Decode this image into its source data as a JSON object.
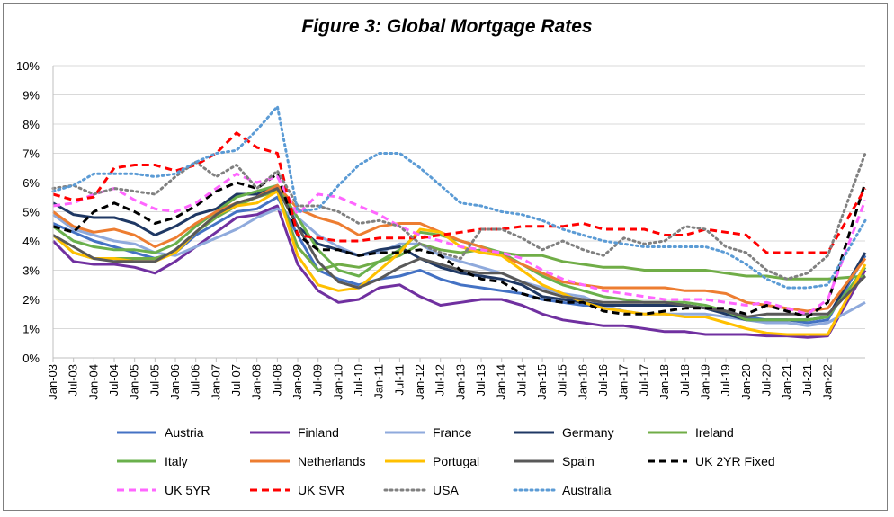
{
  "chart_data": {
    "type": "line",
    "title": "Figure 3: Global Mortgage Rates",
    "ylim": [
      0,
      10
    ],
    "yticks": [
      "0%",
      "1%",
      "2%",
      "3%",
      "4%",
      "5%",
      "6%",
      "7%",
      "8%",
      "9%",
      "10%"
    ],
    "x_labels": [
      "Jan-03",
      "Jul-03",
      "Jan-04",
      "Jul-04",
      "Jan-05",
      "Jul-05",
      "Jan-06",
      "Jul-06",
      "Jan-07",
      "Jul-07",
      "Jan-08",
      "Jul-08",
      "Jan-09",
      "Jul-09",
      "Jan-10",
      "Jul-10",
      "Jan-11",
      "Jul-11",
      "Jan-12",
      "Jul-12",
      "Jan-13",
      "Jul-13",
      "Jan-14",
      "Jul-14",
      "Jan-15",
      "Jul-15",
      "Jan-16",
      "Jul-16",
      "Jan-17",
      "Jul-17",
      "Jan-18",
      "Jul-18",
      "Jan-19",
      "Jul-19",
      "Jan-20",
      "Jul-20",
      "Jan-21",
      "Jul-21",
      "Jan-22"
    ],
    "grid": "horizontal",
    "legend_position": "bottom",
    "x_note": "values sampled every 6 months from Jan-03 to Jan-22, plus a final point at the end of the series (late 2022)",
    "series": [
      {
        "name": "Austria",
        "color": "#4472c4",
        "dash": "solid",
        "values": [
          4.6,
          4.3,
          4.0,
          3.8,
          3.6,
          3.4,
          3.6,
          4.2,
          4.6,
          5.0,
          5.1,
          5.5,
          4.2,
          3.0,
          2.7,
          2.5,
          2.7,
          2.8,
          3.0,
          2.7,
          2.5,
          2.4,
          2.3,
          2.2,
          2.0,
          1.9,
          1.8,
          1.8,
          1.8,
          1.8,
          1.8,
          1.8,
          1.7,
          1.6,
          1.4,
          1.3,
          1.3,
          1.2,
          1.3,
          3.5
        ]
      },
      {
        "name": "Finland",
        "color": "#7030a0",
        "dash": "solid",
        "values": [
          4.0,
          3.3,
          3.2,
          3.2,
          3.1,
          2.9,
          3.3,
          3.8,
          4.3,
          4.8,
          4.9,
          5.2,
          3.2,
          2.3,
          1.9,
          2.0,
          2.4,
          2.5,
          2.1,
          1.8,
          1.9,
          2.0,
          2.0,
          1.8,
          1.5,
          1.3,
          1.2,
          1.1,
          1.1,
          1.0,
          0.9,
          0.9,
          0.8,
          0.8,
          0.8,
          0.75,
          0.75,
          0.7,
          0.75,
          3.0
        ]
      },
      {
        "name": "France",
        "color": "#8faadc",
        "dash": "solid",
        "values": [
          4.9,
          4.4,
          4.2,
          4.0,
          3.9,
          3.6,
          3.5,
          3.8,
          4.1,
          4.4,
          4.8,
          5.1,
          4.8,
          4.2,
          3.8,
          3.5,
          3.6,
          3.9,
          3.9,
          3.5,
          3.3,
          3.1,
          2.9,
          2.6,
          2.4,
          2.2,
          2.1,
          1.8,
          1.6,
          1.5,
          1.5,
          1.5,
          1.5,
          1.4,
          1.3,
          1.2,
          1.2,
          1.1,
          1.2,
          1.9
        ]
      },
      {
        "name": "Germany",
        "color": "#1f3864",
        "dash": "solid",
        "values": [
          5.3,
          4.9,
          4.8,
          4.8,
          4.6,
          4.2,
          4.5,
          4.9,
          5.1,
          5.6,
          5.6,
          5.9,
          4.5,
          3.9,
          3.7,
          3.5,
          3.7,
          3.8,
          3.4,
          3.1,
          2.9,
          2.8,
          2.7,
          2.5,
          2.1,
          2.0,
          1.9,
          1.8,
          1.8,
          1.8,
          1.8,
          1.8,
          1.7,
          1.5,
          1.3,
          1.3,
          1.3,
          1.3,
          1.4,
          3.6
        ]
      },
      {
        "name": "Ireland",
        "color": "#70ad47",
        "dash": "solid",
        "values": [
          4.2,
          3.6,
          3.4,
          3.4,
          3.4,
          3.4,
          3.6,
          4.3,
          4.8,
          5.2,
          5.5,
          5.7,
          3.8,
          3.0,
          3.2,
          3.1,
          3.3,
          3.5,
          3.9,
          3.7,
          3.6,
          3.7,
          3.6,
          3.5,
          3.5,
          3.3,
          3.2,
          3.1,
          3.1,
          3.0,
          3.0,
          3.0,
          3.0,
          2.9,
          2.8,
          2.8,
          2.7,
          2.7,
          2.7,
          2.8
        ]
      },
      {
        "name": "Italy",
        "color": "#6ab04c",
        "dash": "solid",
        "values": [
          4.5,
          4.0,
          3.8,
          3.7,
          3.7,
          3.6,
          3.9,
          4.5,
          5.0,
          5.5,
          5.7,
          5.9,
          4.8,
          3.7,
          3.0,
          2.8,
          3.3,
          3.7,
          4.3,
          4.2,
          4.0,
          3.8,
          3.6,
          3.2,
          2.8,
          2.5,
          2.3,
          2.1,
          2.0,
          1.9,
          1.9,
          1.9,
          1.8,
          1.6,
          1.3,
          1.3,
          1.3,
          1.3,
          1.4,
          3.1
        ]
      },
      {
        "name": "Netherlands",
        "color": "#ed7d31",
        "dash": "solid",
        "values": [
          5.0,
          4.5,
          4.3,
          4.4,
          4.2,
          3.8,
          4.1,
          4.6,
          5.0,
          5.3,
          5.5,
          5.9,
          5.1,
          4.8,
          4.6,
          4.2,
          4.5,
          4.6,
          4.6,
          4.3,
          4.0,
          3.8,
          3.5,
          3.2,
          2.9,
          2.6,
          2.5,
          2.4,
          2.4,
          2.4,
          2.4,
          2.3,
          2.3,
          2.2,
          1.9,
          1.8,
          1.7,
          1.6,
          1.7,
          3.4
        ]
      },
      {
        "name": "Portugal",
        "color": "#ffc000",
        "dash": "solid",
        "values": [
          4.2,
          3.6,
          3.4,
          3.4,
          3.3,
          3.3,
          3.6,
          4.3,
          4.9,
          5.2,
          5.3,
          5.7,
          3.5,
          2.5,
          2.3,
          2.4,
          3.0,
          3.6,
          4.4,
          4.3,
          3.8,
          3.6,
          3.5,
          3.0,
          2.5,
          2.2,
          1.9,
          1.7,
          1.6,
          1.5,
          1.5,
          1.4,
          1.4,
          1.2,
          1.0,
          0.85,
          0.8,
          0.8,
          0.8,
          3.2
        ]
      },
      {
        "name": "Spain",
        "color": "#595959",
        "dash": "solid",
        "values": [
          4.2,
          3.8,
          3.4,
          3.3,
          3.3,
          3.3,
          3.7,
          4.3,
          4.9,
          5.3,
          5.5,
          5.8,
          4.5,
          3.3,
          2.6,
          2.4,
          2.7,
          3.1,
          3.4,
          3.2,
          3.0,
          2.9,
          2.9,
          2.6,
          2.3,
          2.1,
          2.0,
          1.9,
          1.9,
          1.9,
          1.9,
          1.8,
          1.7,
          1.6,
          1.4,
          1.5,
          1.5,
          1.5,
          1.5,
          2.8
        ]
      },
      {
        "name": "UK 2YR Fixed",
        "color": "#000000",
        "dash": "8,5",
        "values": [
          4.5,
          4.3,
          5.0,
          5.3,
          5.0,
          4.6,
          4.8,
          5.2,
          5.7,
          6.0,
          5.8,
          6.3,
          4.2,
          3.7,
          3.7,
          3.5,
          3.6,
          3.6,
          3.7,
          3.5,
          3.0,
          2.7,
          2.6,
          2.2,
          2.0,
          1.9,
          1.9,
          1.6,
          1.5,
          1.5,
          1.6,
          1.7,
          1.7,
          1.7,
          1.5,
          1.8,
          1.6,
          1.4,
          1.9,
          6.0
        ]
      },
      {
        "name": "UK 5YR",
        "color": "#ff66ff",
        "dash": "8,5",
        "values": [
          5.2,
          5.3,
          5.6,
          5.8,
          5.4,
          5.1,
          5.0,
          5.3,
          5.8,
          6.3,
          6.0,
          6.2,
          4.9,
          5.6,
          5.5,
          5.2,
          4.9,
          4.5,
          4.2,
          4.0,
          3.8,
          3.7,
          3.6,
          3.4,
          3.0,
          2.7,
          2.5,
          2.3,
          2.2,
          2.1,
          2.0,
          2.0,
          2.0,
          1.9,
          1.8,
          1.9,
          1.7,
          1.5,
          2.0,
          5.4
        ]
      },
      {
        "name": "UK SVR",
        "color": "#ff0000",
        "dash": "8,5",
        "values": [
          5.6,
          5.4,
          5.5,
          6.5,
          6.6,
          6.6,
          6.4,
          6.6,
          7.0,
          7.7,
          7.2,
          7.0,
          4.2,
          4.1,
          4.0,
          4.0,
          4.1,
          4.1,
          4.1,
          4.2,
          4.3,
          4.4,
          4.4,
          4.5,
          4.5,
          4.5,
          4.6,
          4.4,
          4.4,
          4.4,
          4.2,
          4.2,
          4.4,
          4.3,
          4.2,
          3.6,
          3.6,
          3.6,
          3.6,
          5.8
        ]
      },
      {
        "name": "USA",
        "color": "#808080",
        "dash": "2,4",
        "values": [
          5.8,
          5.9,
          5.6,
          5.8,
          5.7,
          5.6,
          6.2,
          6.7,
          6.2,
          6.6,
          5.8,
          6.4,
          5.2,
          5.2,
          5.0,
          4.6,
          4.7,
          4.5,
          3.9,
          3.6,
          3.4,
          4.4,
          4.4,
          4.1,
          3.7,
          4.0,
          3.7,
          3.5,
          4.1,
          3.9,
          4.0,
          4.5,
          4.4,
          3.8,
          3.6,
          3.0,
          2.7,
          2.9,
          3.5,
          7.0
        ]
      },
      {
        "name": "Australia",
        "color": "#5b9bd5",
        "dash": "2,4",
        "values": [
          5.7,
          5.9,
          6.3,
          6.3,
          6.3,
          6.2,
          6.3,
          6.7,
          7.0,
          7.1,
          7.8,
          8.6,
          5.0,
          5.1,
          5.9,
          6.6,
          7.0,
          7.0,
          6.5,
          5.9,
          5.3,
          5.2,
          5.0,
          4.9,
          4.7,
          4.4,
          4.2,
          4.0,
          3.9,
          3.8,
          3.8,
          3.8,
          3.8,
          3.6,
          3.2,
          2.7,
          2.4,
          2.4,
          2.5,
          4.7
        ]
      }
    ]
  }
}
